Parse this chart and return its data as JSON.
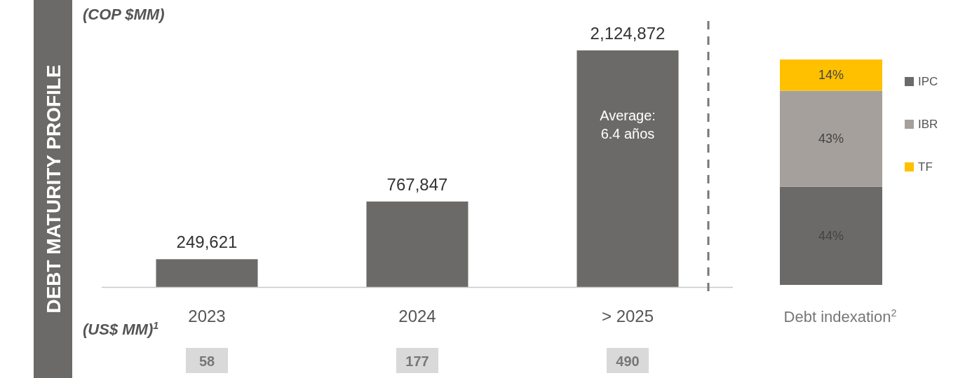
{
  "chart_data": [
    {
      "type": "bar",
      "title": "DEBT MATURITY PROFILE",
      "ylabel": "(COP $MM)",
      "categories": [
        "2023",
        "2024",
        "> 2025"
      ],
      "values": [
        249621,
        767847,
        2124872
      ],
      "value_labels": [
        "249,621",
        "767,847",
        "2,124,872"
      ],
      "color": "#6b6a68",
      "annotations": [
        "Average: 6.4 años",
        "(US$ MM)$^{1}$",
        "58",
        "177",
        "490"
      ]
    },
    {
      "type": "bar",
      "stacked": true,
      "xlabel": "Debt indexation$^{2}$",
      "categories": [
        null
      ],
      "legend": "right",
      "series": [
        {
          "name": "IPC",
          "color": "#6b6a68",
          "values": [
            44
          ],
          "value_labels": [
            "44%"
          ]
        },
        {
          "name": "IBR",
          "color": "#a5a09b",
          "values": [
            43
          ],
          "value_labels": [
            "43%"
          ]
        },
        {
          "name": "TF",
          "color": "#ffc000",
          "values": [
            14
          ],
          "value_labels": [
            "14%"
          ]
        }
      ]
    }
  ]
}
